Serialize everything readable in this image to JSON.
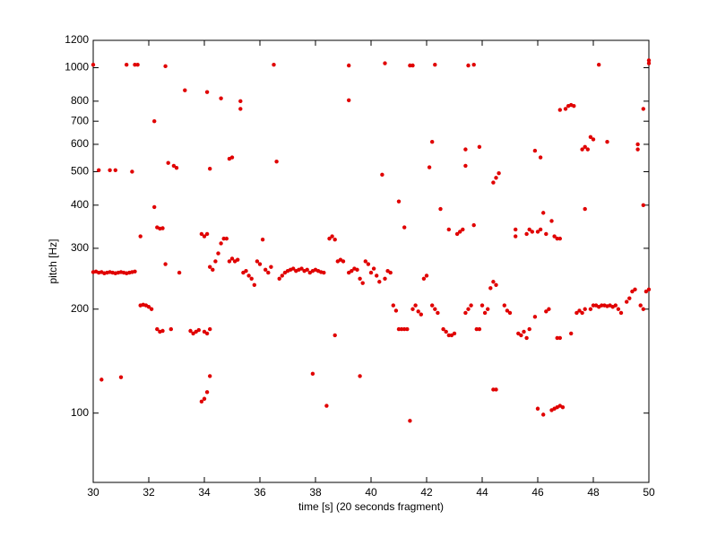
{
  "chart_data": {
    "type": "scatter",
    "xlabel": "time [s] (20 seconds fragment)",
    "ylabel": "pitch [Hz]",
    "color": "#e00000",
    "yscale": "log",
    "xlim": [
      30,
      50
    ],
    "ylim": [
      63,
      1200
    ],
    "xticks": [
      30,
      32,
      34,
      36,
      38,
      40,
      42,
      44,
      46,
      48,
      50
    ],
    "yticks": [
      100,
      200,
      300,
      400,
      500,
      600,
      700,
      800,
      1000,
      1200
    ],
    "x": [
      30.0,
      30.1,
      30.2,
      30.3,
      30.4,
      30.5,
      30.6,
      30.7,
      30.8,
      30.9,
      31.0,
      31.1,
      31.2,
      31.3,
      31.4,
      31.5,
      30.0,
      30.2,
      30.6,
      30.8,
      31.2,
      31.4,
      31.5,
      31.6,
      30.3,
      31.0,
      31.7,
      31.7,
      31.8,
      31.9,
      32.0,
      32.1,
      32.2,
      32.2,
      32.3,
      32.4,
      32.5,
      32.3,
      32.4,
      32.5,
      32.6,
      32.6,
      32.7,
      32.8,
      32.9,
      33.0,
      33.1,
      33.3,
      33.5,
      33.6,
      33.7,
      33.8,
      33.9,
      34.0,
      34.1,
      33.9,
      34.0,
      34.1,
      34.2,
      34.0,
      34.1,
      34.2,
      34.1,
      34.2,
      34.2,
      34.3,
      34.4,
      34.5,
      34.6,
      34.7,
      34.6,
      34.8,
      34.9,
      35.0,
      35.1,
      35.2,
      34.9,
      35.0,
      35.3,
      35.3,
      35.4,
      35.5,
      35.6,
      35.7,
      35.8,
      35.9,
      36.0,
      36.1,
      36.2,
      36.3,
      36.4,
      36.5,
      36.6,
      36.7,
      36.8,
      36.9,
      37.0,
      37.1,
      37.2,
      37.3,
      37.4,
      37.5,
      37.6,
      37.7,
      37.8,
      37.9,
      38.0,
      38.1,
      38.2,
      38.3,
      37.9,
      38.4,
      38.5,
      38.6,
      38.7,
      38.7,
      38.8,
      38.9,
      39.0,
      39.2,
      39.2,
      39.2,
      39.3,
      39.4,
      39.5,
      39.6,
      39.7,
      39.6,
      39.8,
      39.9,
      40.0,
      40.1,
      40.2,
      40.3,
      40.4,
      40.5,
      40.6,
      40.7,
      40.5,
      40.8,
      40.9,
      41.0,
      41.0,
      41.1,
      41.2,
      41.3,
      41.2,
      41.4,
      41.4,
      41.5,
      41.5,
      41.6,
      41.7,
      41.8,
      41.9,
      42.0,
      42.1,
      42.2,
      42.2,
      42.3,
      42.4,
      42.3,
      42.5,
      42.6,
      42.7,
      42.8,
      42.9,
      43.0,
      42.8,
      43.1,
      43.2,
      43.3,
      43.4,
      43.5,
      43.6,
      43.4,
      43.4,
      43.5,
      43.7,
      43.7,
      43.8,
      43.9,
      43.9,
      44.0,
      44.1,
      44.2,
      44.3,
      44.4,
      44.5,
      44.4,
      44.5,
      44.6,
      44.4,
      44.5,
      44.8,
      44.9,
      45.0,
      45.2,
      45.2,
      45.3,
      45.4,
      45.5,
      45.6,
      45.7,
      45.6,
      45.7,
      45.8,
      45.9,
      46.0,
      46.1,
      46.1,
      46.2,
      46.3,
      45.9,
      46.0,
      46.2,
      46.3,
      46.4,
      46.5,
      46.6,
      46.7,
      46.8,
      46.9,
      46.5,
      46.6,
      46.7,
      46.8,
      46.7,
      46.8,
      46.8,
      47.0,
      47.1,
      47.2,
      47.3,
      47.2,
      47.4,
      47.5,
      47.6,
      47.7,
      47.6,
      47.7,
      47.8,
      47.7,
      47.9,
      48.0,
      47.9,
      48.0,
      48.1,
      48.2,
      48.3,
      48.4,
      48.5,
      48.6,
      48.7,
      48.8,
      48.9,
      48.2,
      48.5,
      49.0,
      49.2,
      49.3,
      49.4,
      49.5,
      49.6,
      49.6,
      49.7,
      49.8,
      49.8,
      49.8,
      49.9,
      50.0,
      50.0,
      50.0
    ],
    "values": [
      256,
      257,
      255,
      256,
      254,
      255,
      256,
      255,
      254,
      255,
      256,
      255,
      254,
      255,
      256,
      257,
      1020,
      505,
      505,
      505,
      1020,
      500,
      1020,
      1020,
      125,
      127,
      325,
      205,
      206,
      205,
      203,
      200,
      395,
      700,
      175,
      172,
      173,
      345,
      342,
      343,
      270,
      1010,
      530,
      175,
      520,
      513,
      255,
      860,
      173,
      170,
      172,
      174,
      330,
      325,
      330,
      108,
      110,
      115,
      128,
      172,
      170,
      175,
      850,
      510,
      265,
      260,
      275,
      290,
      310,
      320,
      815,
      320,
      275,
      280,
      275,
      278,
      545,
      550,
      800,
      760,
      255,
      258,
      250,
      245,
      235,
      275,
      270,
      318,
      260,
      255,
      265,
      1020,
      535,
      245,
      250,
      255,
      258,
      260,
      262,
      258,
      260,
      262,
      258,
      260,
      255,
      258,
      260,
      258,
      256,
      255,
      130,
      105,
      320,
      325,
      318,
      168,
      275,
      278,
      275,
      1015,
      805,
      255,
      258,
      262,
      260,
      245,
      238,
      128,
      275,
      270,
      255,
      262,
      250,
      240,
      490,
      245,
      258,
      255,
      1030,
      205,
      198,
      410,
      175,
      175,
      175,
      175,
      345,
      95,
      1015,
      1015,
      200,
      205,
      197,
      193,
      245,
      250,
      515,
      610,
      205,
      200,
      195,
      1020,
      390,
      175,
      172,
      168,
      168,
      170,
      340,
      330,
      335,
      340,
      195,
      200,
      205,
      520,
      580,
      1015,
      1020,
      350,
      175,
      175,
      590,
      205,
      195,
      200,
      230,
      240,
      235,
      465,
      480,
      495,
      117,
      117,
      205,
      198,
      195,
      325,
      340,
      170,
      168,
      172,
      165,
      175,
      330,
      340,
      335,
      575,
      335,
      340,
      550,
      380,
      330,
      190,
      103,
      99,
      197,
      200,
      102,
      103,
      104,
      105,
      104,
      360,
      325,
      320,
      320,
      165,
      165,
      755,
      760,
      775,
      780,
      775,
      170,
      195,
      198,
      195,
      200,
      580,
      590,
      580,
      390,
      630,
      620,
      200,
      205,
      205,
      203,
      205,
      205,
      204,
      205,
      203,
      205,
      200,
      1020,
      610,
      195,
      210,
      215,
      225,
      228,
      600,
      580,
      205,
      200,
      400,
      760,
      225,
      228,
      1050,
      1030
    ]
  }
}
